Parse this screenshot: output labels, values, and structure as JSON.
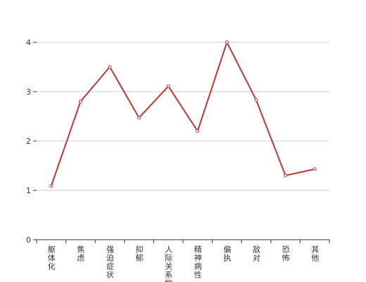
{
  "chart_data": {
    "type": "line",
    "categories": [
      "躯体化",
      "焦虑",
      "强迫症状",
      "抑郁",
      "人际关系敏感",
      "精神病性",
      "偏执",
      "敌对",
      "恐怖",
      "其他"
    ],
    "values": [
      1.09,
      2.8,
      3.5,
      2.47,
      3.11,
      2.2,
      4.0,
      2.83,
      1.3,
      1.43
    ],
    "color": "#c23531",
    "ylim": [
      0,
      4
    ],
    "yticks": [
      0,
      1,
      2,
      3,
      4
    ],
    "grid": true
  }
}
